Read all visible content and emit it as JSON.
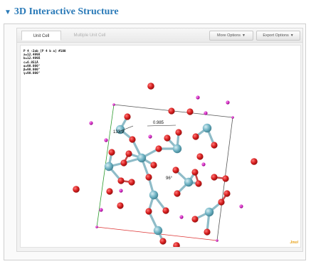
{
  "section": {
    "title": "3D Interactive Structure"
  },
  "tabs": [
    {
      "label": "Unit Cell",
      "active": true
    },
    {
      "label": "Multiple Unit Cell",
      "active": false
    }
  ],
  "toolbar": {
    "more_options": "More Options",
    "export_options": "Export Options"
  },
  "cell_info": [
    "P 4 -2ab [P 4 b a] #100",
    "a=12.499Å",
    "b=12.499Å",
    "c=6.851Å",
    "α=90.000°",
    "β=90.000°",
    "γ=90.000°"
  ],
  "measurements": {
    "angle_1": "133.9",
    "distance": "0.985",
    "angle_2": "96°"
  },
  "logo": "Jmol",
  "colors": {
    "oxygen": "#d81f1f",
    "silicon": "#6fb3c4",
    "hydrogen": "#d020c0",
    "cell_a": "#d33",
    "cell_b": "#2a9a2a",
    "cell_edge": "#555555",
    "accent_title": "#2a7ab8"
  }
}
